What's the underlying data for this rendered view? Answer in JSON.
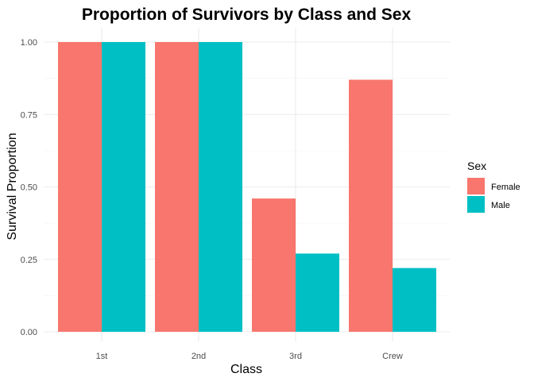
{
  "chart_data": {
    "type": "bar",
    "title": "Proportion of Survivors by Class and Sex",
    "xlabel": "Class",
    "ylabel": "Survival Proportion",
    "categories": [
      "1st",
      "2nd",
      "3rd",
      "Crew"
    ],
    "series": [
      {
        "name": "Female",
        "color": "#F8766D",
        "values": [
          1.0,
          1.0,
          0.46,
          0.87
        ]
      },
      {
        "name": "Male",
        "color": "#00BFC4",
        "values": [
          1.0,
          1.0,
          0.27,
          0.22
        ]
      }
    ],
    "ylim": [
      0,
      1
    ],
    "yticks": [
      "0.00",
      "0.25",
      "0.50",
      "0.75",
      "1.00"
    ],
    "legend": {
      "title": "Sex",
      "placement": "right"
    },
    "grid": true
  }
}
